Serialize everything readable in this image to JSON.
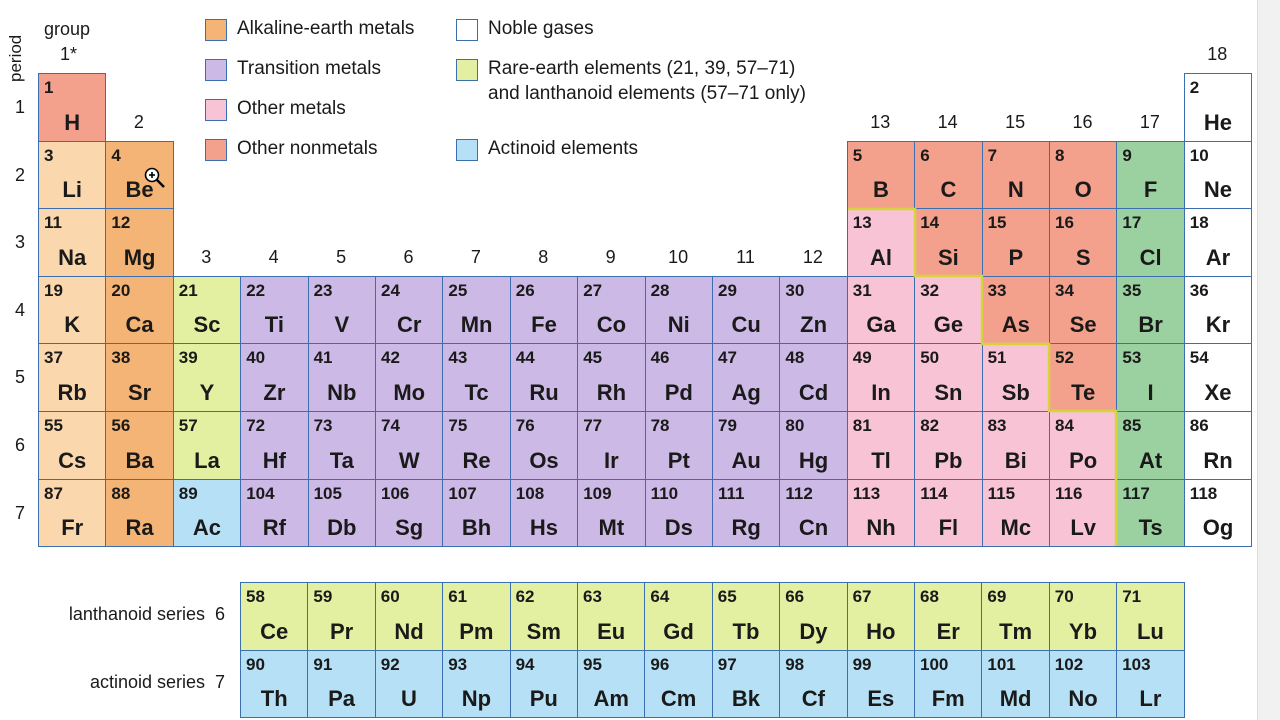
{
  "colors": {
    "alkali": "#fbd7ad",
    "alkaline_earth": "#f4b476",
    "transition": "#cdb9e6",
    "other_metal": "#f9c3d6",
    "other_nonmetal": "#f3a08c",
    "halogen": "#9bd1a1",
    "noble": "#ffffff",
    "rare_earth": "#e3f0a1",
    "actinoid": "#b5e0f5",
    "border": "#3b6fb0",
    "stair_line": "#d7d33c"
  },
  "labels": {
    "period_axis": "period",
    "group_axis": "group",
    "group1": "1*",
    "lanthanoid_series": "lanthanoid series",
    "lanthanoid_period": "6",
    "actinoid_series": "actinoid series",
    "actinoid_period": "7"
  },
  "legend": [
    {
      "key": "alkaline_earth",
      "text": "Alkaline-earth metals"
    },
    {
      "key": "transition",
      "text": "Transition metals"
    },
    {
      "key": "other_metal",
      "text": "Other metals"
    },
    {
      "key": "other_nonmetal",
      "text": "Other nonmetals"
    },
    {
      "key": "noble",
      "text": "Noble gases"
    },
    {
      "key": "rare_earth",
      "text": "Rare-earth elements (21, 39, 57–71)",
      "text2": "and lanthanoid elements (57–71 only)"
    },
    {
      "key": "actinoid",
      "text": "Actinoid elements"
    }
  ],
  "group_labels": [
    "2",
    "3",
    "4",
    "5",
    "6",
    "7",
    "8",
    "9",
    "10",
    "11",
    "12",
    "13",
    "14",
    "15",
    "16",
    "17",
    "18"
  ],
  "period_labels": [
    "1",
    "2",
    "3",
    "4",
    "5",
    "6",
    "7"
  ],
  "elements": [
    {
      "n": "1",
      "s": "H",
      "c": "other_nonmetal"
    },
    {
      "n": "2",
      "s": "He",
      "c": "noble"
    },
    {
      "n": "3",
      "s": "Li",
      "c": "alkali"
    },
    {
      "n": "4",
      "s": "Be",
      "c": "alkaline_earth"
    },
    {
      "n": "5",
      "s": "B",
      "c": "other_nonmetal"
    },
    {
      "n": "6",
      "s": "C",
      "c": "other_nonmetal"
    },
    {
      "n": "7",
      "s": "N",
      "c": "other_nonmetal"
    },
    {
      "n": "8",
      "s": "O",
      "c": "other_nonmetal"
    },
    {
      "n": "9",
      "s": "F",
      "c": "halogen"
    },
    {
      "n": "10",
      "s": "Ne",
      "c": "noble"
    },
    {
      "n": "11",
      "s": "Na",
      "c": "alkali"
    },
    {
      "n": "12",
      "s": "Mg",
      "c": "alkaline_earth"
    },
    {
      "n": "13",
      "s": "Al",
      "c": "other_metal"
    },
    {
      "n": "14",
      "s": "Si",
      "c": "other_nonmetal"
    },
    {
      "n": "15",
      "s": "P",
      "c": "other_nonmetal"
    },
    {
      "n": "16",
      "s": "S",
      "c": "other_nonmetal"
    },
    {
      "n": "17",
      "s": "Cl",
      "c": "halogen"
    },
    {
      "n": "18",
      "s": "Ar",
      "c": "noble"
    },
    {
      "n": "19",
      "s": "K",
      "c": "alkali"
    },
    {
      "n": "20",
      "s": "Ca",
      "c": "alkaline_earth"
    },
    {
      "n": "21",
      "s": "Sc",
      "c": "rare_earth"
    },
    {
      "n": "22",
      "s": "Ti",
      "c": "transition"
    },
    {
      "n": "23",
      "s": "V",
      "c": "transition"
    },
    {
      "n": "24",
      "s": "Cr",
      "c": "transition"
    },
    {
      "n": "25",
      "s": "Mn",
      "c": "transition"
    },
    {
      "n": "26",
      "s": "Fe",
      "c": "transition"
    },
    {
      "n": "27",
      "s": "Co",
      "c": "transition"
    },
    {
      "n": "28",
      "s": "Ni",
      "c": "transition"
    },
    {
      "n": "29",
      "s": "Cu",
      "c": "transition"
    },
    {
      "n": "30",
      "s": "Zn",
      "c": "transition"
    },
    {
      "n": "31",
      "s": "Ga",
      "c": "other_metal"
    },
    {
      "n": "32",
      "s": "Ge",
      "c": "other_metal"
    },
    {
      "n": "33",
      "s": "As",
      "c": "other_nonmetal"
    },
    {
      "n": "34",
      "s": "Se",
      "c": "other_nonmetal"
    },
    {
      "n": "35",
      "s": "Br",
      "c": "halogen"
    },
    {
      "n": "36",
      "s": "Kr",
      "c": "noble"
    },
    {
      "n": "37",
      "s": "Rb",
      "c": "alkali"
    },
    {
      "n": "38",
      "s": "Sr",
      "c": "alkaline_earth"
    },
    {
      "n": "39",
      "s": "Y",
      "c": "rare_earth"
    },
    {
      "n": "40",
      "s": "Zr",
      "c": "transition"
    },
    {
      "n": "41",
      "s": "Nb",
      "c": "transition"
    },
    {
      "n": "42",
      "s": "Mo",
      "c": "transition"
    },
    {
      "n": "43",
      "s": "Tc",
      "c": "transition"
    },
    {
      "n": "44",
      "s": "Ru",
      "c": "transition"
    },
    {
      "n": "45",
      "s": "Rh",
      "c": "transition"
    },
    {
      "n": "46",
      "s": "Pd",
      "c": "transition"
    },
    {
      "n": "47",
      "s": "Ag",
      "c": "transition"
    },
    {
      "n": "48",
      "s": "Cd",
      "c": "transition"
    },
    {
      "n": "49",
      "s": "In",
      "c": "other_metal"
    },
    {
      "n": "50",
      "s": "Sn",
      "c": "other_metal"
    },
    {
      "n": "51",
      "s": "Sb",
      "c": "other_metal"
    },
    {
      "n": "52",
      "s": "Te",
      "c": "other_nonmetal"
    },
    {
      "n": "53",
      "s": "I",
      "c": "halogen"
    },
    {
      "n": "54",
      "s": "Xe",
      "c": "noble"
    },
    {
      "n": "55",
      "s": "Cs",
      "c": "alkali"
    },
    {
      "n": "56",
      "s": "Ba",
      "c": "alkaline_earth"
    },
    {
      "n": "57",
      "s": "La",
      "c": "rare_earth"
    },
    {
      "n": "72",
      "s": "Hf",
      "c": "transition"
    },
    {
      "n": "73",
      "s": "Ta",
      "c": "transition"
    },
    {
      "n": "74",
      "s": "W",
      "c": "transition"
    },
    {
      "n": "75",
      "s": "Re",
      "c": "transition"
    },
    {
      "n": "76",
      "s": "Os",
      "c": "transition"
    },
    {
      "n": "77",
      "s": "Ir",
      "c": "transition"
    },
    {
      "n": "78",
      "s": "Pt",
      "c": "transition"
    },
    {
      "n": "79",
      "s": "Au",
      "c": "transition"
    },
    {
      "n": "80",
      "s": "Hg",
      "c": "transition"
    },
    {
      "n": "81",
      "s": "Tl",
      "c": "other_metal"
    },
    {
      "n": "82",
      "s": "Pb",
      "c": "other_metal"
    },
    {
      "n": "83",
      "s": "Bi",
      "c": "other_metal"
    },
    {
      "n": "84",
      "s": "Po",
      "c": "other_metal"
    },
    {
      "n": "85",
      "s": "At",
      "c": "halogen"
    },
    {
      "n": "86",
      "s": "Rn",
      "c": "noble"
    },
    {
      "n": "87",
      "s": "Fr",
      "c": "alkali"
    },
    {
      "n": "88",
      "s": "Ra",
      "c": "alkaline_earth"
    },
    {
      "n": "89",
      "s": "Ac",
      "c": "actinoid"
    },
    {
      "n": "104",
      "s": "Rf",
      "c": "transition"
    },
    {
      "n": "105",
      "s": "Db",
      "c": "transition"
    },
    {
      "n": "106",
      "s": "Sg",
      "c": "transition"
    },
    {
      "n": "107",
      "s": "Bh",
      "c": "transition"
    },
    {
      "n": "108",
      "s": "Hs",
      "c": "transition"
    },
    {
      "n": "109",
      "s": "Mt",
      "c": "transition"
    },
    {
      "n": "110",
      "s": "Ds",
      "c": "transition"
    },
    {
      "n": "111",
      "s": "Rg",
      "c": "transition"
    },
    {
      "n": "112",
      "s": "Cn",
      "c": "transition"
    },
    {
      "n": "113",
      "s": "Nh",
      "c": "other_metal"
    },
    {
      "n": "114",
      "s": "Fl",
      "c": "other_metal"
    },
    {
      "n": "115",
      "s": "Mc",
      "c": "other_metal"
    },
    {
      "n": "116",
      "s": "Lv",
      "c": "other_metal"
    },
    {
      "n": "117",
      "s": "Ts",
      "c": "halogen"
    },
    {
      "n": "118",
      "s": "Og",
      "c": "noble"
    }
  ],
  "lanthanoids": [
    {
      "n": "58",
      "s": "Ce"
    },
    {
      "n": "59",
      "s": "Pr"
    },
    {
      "n": "60",
      "s": "Nd"
    },
    {
      "n": "61",
      "s": "Pm"
    },
    {
      "n": "62",
      "s": "Sm"
    },
    {
      "n": "63",
      "s": "Eu"
    },
    {
      "n": "64",
      "s": "Gd"
    },
    {
      "n": "65",
      "s": "Tb"
    },
    {
      "n": "66",
      "s": "Dy"
    },
    {
      "n": "67",
      "s": "Ho"
    },
    {
      "n": "68",
      "s": "Er"
    },
    {
      "n": "69",
      "s": "Tm"
    },
    {
      "n": "70",
      "s": "Yb"
    },
    {
      "n": "71",
      "s": "Lu"
    }
  ],
  "actinoids": [
    {
      "n": "90",
      "s": "Th"
    },
    {
      "n": "91",
      "s": "Pa"
    },
    {
      "n": "92",
      "s": "U"
    },
    {
      "n": "93",
      "s": "Np"
    },
    {
      "n": "94",
      "s": "Pu"
    },
    {
      "n": "95",
      "s": "Am"
    },
    {
      "n": "96",
      "s": "Cm"
    },
    {
      "n": "97",
      "s": "Bk"
    },
    {
      "n": "98",
      "s": "Cf"
    },
    {
      "n": "99",
      "s": "Es"
    },
    {
      "n": "100",
      "s": "Fm"
    },
    {
      "n": "101",
      "s": "Md"
    },
    {
      "n": "102",
      "s": "No"
    },
    {
      "n": "103",
      "s": "Lr"
    }
  ]
}
